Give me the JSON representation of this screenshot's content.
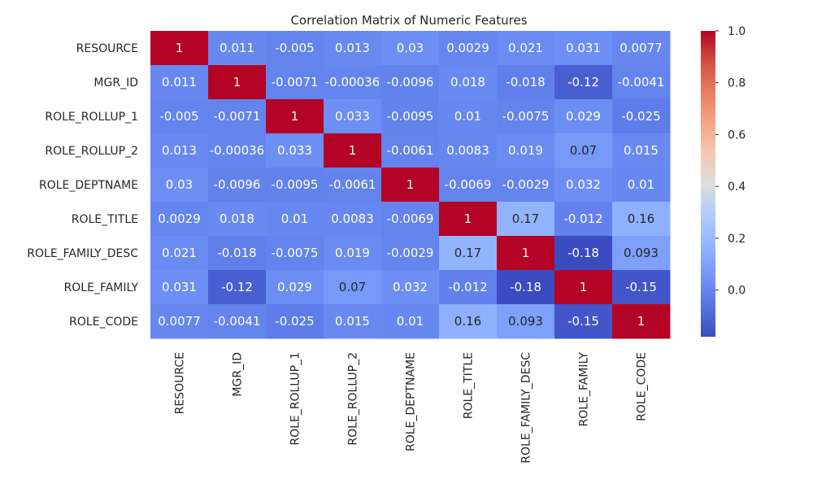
{
  "chart_data": {
    "type": "heatmap",
    "title": "Correlation Matrix of Numeric Features",
    "row_labels": [
      "RESOURCE",
      "MGR_ID",
      "ROLE_ROLLUP_1",
      "ROLE_ROLLUP_2",
      "ROLE_DEPTNAME",
      "ROLE_TITLE",
      "ROLE_FAMILY_DESC",
      "ROLE_FAMILY",
      "ROLE_CODE"
    ],
    "col_labels": [
      "RESOURCE",
      "MGR_ID",
      "ROLE_ROLLUP_1",
      "ROLE_ROLLUP_2",
      "ROLE_DEPTNAME",
      "ROLE_TITLE",
      "ROLE_FAMILY_DESC",
      "ROLE_FAMILY",
      "ROLE_CODE"
    ],
    "values": [
      [
        1,
        0.011,
        -0.005,
        0.013,
        0.03,
        0.0029,
        0.021,
        0.031,
        0.0077
      ],
      [
        0.011,
        1,
        -0.0071,
        -0.00036,
        -0.0096,
        0.018,
        -0.018,
        -0.12,
        -0.0041
      ],
      [
        -0.005,
        -0.0071,
        1,
        0.033,
        -0.0095,
        0.01,
        -0.0075,
        0.029,
        -0.025
      ],
      [
        0.013,
        -0.00036,
        0.033,
        1,
        -0.0061,
        0.0083,
        0.019,
        0.07,
        0.015
      ],
      [
        0.03,
        -0.0096,
        -0.0095,
        -0.0061,
        1,
        -0.0069,
        -0.0029,
        0.032,
        0.01
      ],
      [
        0.0029,
        0.018,
        0.01,
        0.0083,
        -0.0069,
        1,
        0.17,
        -0.012,
        0.16
      ],
      [
        0.021,
        -0.018,
        -0.0075,
        0.019,
        -0.0029,
        0.17,
        1,
        -0.18,
        0.093
      ],
      [
        0.031,
        -0.12,
        0.029,
        0.07,
        0.032,
        -0.012,
        -0.18,
        1,
        -0.15
      ],
      [
        0.0077,
        -0.0041,
        -0.025,
        0.015,
        0.01,
        0.16,
        0.093,
        -0.15,
        1
      ]
    ],
    "annotations": [
      [
        "1",
        "0.011",
        "-0.005",
        "0.013",
        "0.03",
        "0.0029",
        "0.021",
        "0.031",
        "0.0077"
      ],
      [
        "0.011",
        "1",
        "-0.0071",
        "-0.00036",
        "-0.0096",
        "0.018",
        "-0.018",
        "-0.12",
        "-0.0041"
      ],
      [
        "-0.005",
        "-0.0071",
        "1",
        "0.033",
        "-0.0095",
        "0.01",
        "-0.0075",
        "0.029",
        "-0.025"
      ],
      [
        "0.013",
        "-0.00036",
        "0.033",
        "1",
        "-0.0061",
        "0.0083",
        "0.019",
        "0.07",
        "0.015"
      ],
      [
        "0.03",
        "-0.0096",
        "-0.0095",
        "-0.0061",
        "1",
        "-0.0069",
        "-0.0029",
        "0.032",
        "0.01"
      ],
      [
        "0.0029",
        "0.018",
        "0.01",
        "0.0083",
        "-0.0069",
        "1",
        "0.17",
        "-0.012",
        "0.16"
      ],
      [
        "0.021",
        "-0.018",
        "-0.0075",
        "0.019",
        "-0.0029",
        "0.17",
        "1",
        "-0.18",
        "0.093"
      ],
      [
        "0.031",
        "-0.12",
        "0.029",
        "0.07",
        "0.032",
        "-0.012",
        "-0.18",
        "1",
        "-0.15"
      ],
      [
        "0.0077",
        "-0.0041",
        "-0.025",
        "0.015",
        "0.01",
        "0.16",
        "0.093",
        "-0.15",
        "1"
      ]
    ],
    "colormap": "coolwarm",
    "vmin": -0.18,
    "vmax": 1.0,
    "colorbar": {
      "ticks": [
        1.0,
        0.8,
        0.6,
        0.4,
        0.2,
        0.0
      ],
      "tick_labels": [
        "1.0",
        "0.8",
        "0.6",
        "0.4",
        "0.2",
        "0.0"
      ],
      "placement": "right"
    },
    "grid": false
  }
}
